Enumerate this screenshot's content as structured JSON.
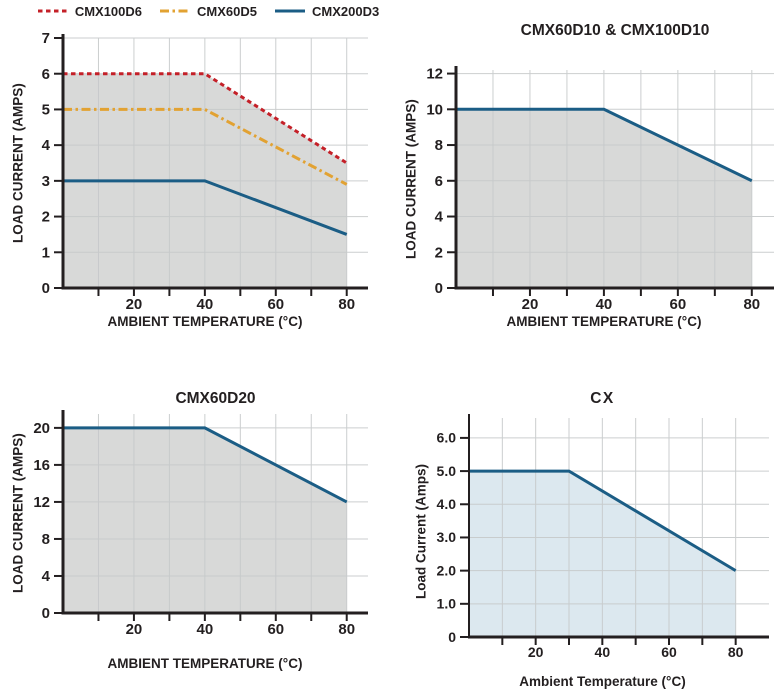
{
  "colors": {
    "axis": "#231f20",
    "text": "#231f20",
    "grid": "#c6c9ca",
    "gray_fill": "#d8d9d8",
    "blue_fill": "#dce8ef",
    "red_line": "#c42028",
    "orange_line": "#e2a232",
    "blue_line": "#1b5d85"
  },
  "chart_data": [
    {
      "type": "area",
      "title": "",
      "legend_position": "top",
      "x_axis": {
        "label": "AMBIENT TEMPERATURE (°C)",
        "range": [
          0,
          86
        ],
        "gridlines": [
          10,
          20,
          30,
          40,
          50,
          60,
          70,
          80
        ],
        "minor_ticks": [
          10,
          30,
          50,
          70
        ],
        "major_ticks": [
          20,
          40,
          60,
          80
        ],
        "major_tick_labels": [
          "20",
          "40",
          "60",
          "80"
        ]
      },
      "y_axis": {
        "label": "LOAD CURRENT (AMPS)",
        "range": [
          0,
          7
        ],
        "ticks": [
          0,
          1,
          2,
          3,
          4,
          5,
          6,
          7
        ],
        "tick_labels": [
          "0",
          "1",
          "2",
          "3",
          "4",
          "5",
          "6",
          "7"
        ],
        "gridlines": [
          1,
          2,
          3,
          4,
          5,
          6,
          7
        ]
      },
      "area_fill": {
        "color": "#d8d9d8",
        "under_series": 0,
        "baseline": 0
      },
      "series": [
        {
          "name": "CMX100D6",
          "color": "#c42028",
          "dash": "4.5,3.5",
          "width": 3,
          "points": [
            [
              0,
              6
            ],
            [
              40,
              6
            ],
            [
              80,
              3.5
            ]
          ]
        },
        {
          "name": "CMX60D5",
          "color": "#e2a232",
          "dash": "9,3.5,2.5,3.5",
          "width": 3,
          "points": [
            [
              0,
              5
            ],
            [
              40,
              5
            ],
            [
              80,
              2.9
            ]
          ]
        },
        {
          "name": "CMX200D3",
          "color": "#1b5d85",
          "dash": "",
          "width": 3,
          "points": [
            [
              0,
              3
            ],
            [
              40,
              3
            ],
            [
              80,
              1.5
            ]
          ]
        }
      ]
    },
    {
      "type": "area",
      "title": "CMX60D10 & CMX100D10",
      "x_axis": {
        "label": "AMBIENT TEMPERATURE (°C)",
        "range": [
          0,
          86
        ],
        "gridlines": [
          10,
          20,
          30,
          40,
          50,
          60,
          70,
          80
        ],
        "minor_ticks": [
          10,
          30,
          50,
          70
        ],
        "major_ticks": [
          20,
          40,
          60,
          80
        ],
        "major_tick_labels": [
          "20",
          "40",
          "60",
          "80"
        ]
      },
      "y_axis": {
        "label": "LOAD CURRENT (AMPS)",
        "range": [
          0,
          12.2
        ],
        "ticks": [
          0,
          2,
          4,
          6,
          8,
          10,
          12
        ],
        "tick_labels": [
          "0",
          "2",
          "4",
          "6",
          "8",
          "10",
          "12"
        ],
        "gridlines": [
          2,
          4,
          6,
          8,
          10,
          12
        ]
      },
      "area_fill": {
        "color": "#d8d9d8",
        "under_series": 0,
        "baseline": 0
      },
      "series": [
        {
          "name": "CMX60D10 & CMX100D10",
          "color": "#1b5d85",
          "dash": "",
          "width": 3,
          "points": [
            [
              0,
              10
            ],
            [
              40,
              10
            ],
            [
              80,
              6
            ]
          ]
        }
      ]
    },
    {
      "type": "area",
      "title": "CMX60D20",
      "x_axis": {
        "label": "AMBIENT TEMPERATURE (°C)",
        "range": [
          0,
          86
        ],
        "gridlines": [
          10,
          20,
          30,
          40,
          50,
          60,
          70,
          80
        ],
        "minor_ticks": [
          10,
          30,
          50,
          70
        ],
        "major_ticks": [
          20,
          40,
          60,
          80
        ],
        "major_tick_labels": [
          "20",
          "40",
          "60",
          "80"
        ]
      },
      "y_axis": {
        "label": "LOAD CURRENT (AMPS)",
        "range": [
          0,
          21.5
        ],
        "ticks": [
          0,
          4,
          8,
          12,
          16,
          20
        ],
        "tick_labels": [
          "0",
          "4",
          "8",
          "12",
          "16",
          "20"
        ],
        "gridlines": [
          4,
          8,
          12,
          16,
          20
        ]
      },
      "area_fill": {
        "color": "#d8d9d8",
        "under_series": 0,
        "baseline": 0
      },
      "series": [
        {
          "name": "CMX60D20",
          "color": "#1b5d85",
          "dash": "",
          "width": 3,
          "points": [
            [
              0,
              20
            ],
            [
              40,
              20
            ],
            [
              80,
              12
            ]
          ]
        }
      ]
    },
    {
      "type": "area",
      "title": "CX",
      "x_axis": {
        "label": "Ambient Temperature (°C)",
        "range": [
          0,
          90
        ],
        "gridlines": [
          10,
          20,
          30,
          40,
          50,
          60,
          70,
          80
        ],
        "minor_ticks": [
          10,
          30,
          50,
          70
        ],
        "major_ticks": [
          20,
          40,
          60,
          80
        ],
        "major_tick_labels": [
          "20",
          "40",
          "60",
          "80"
        ]
      },
      "y_axis": {
        "label": "Load Current (Amps)",
        "range": [
          0,
          6.6
        ],
        "ticks": [
          0,
          1,
          2,
          3,
          4,
          5,
          6
        ],
        "tick_labels": [
          "0",
          "1.0",
          "2.0",
          "3.0",
          "4.0",
          "5.0",
          "6.0"
        ],
        "gridlines": [
          1,
          2,
          3,
          4,
          5,
          6
        ]
      },
      "area_fill": {
        "color": "#dce8ef",
        "under_series": 0,
        "baseline": 0
      },
      "series": [
        {
          "name": "CX",
          "color": "#1b5d85",
          "dash": "",
          "width": 3,
          "points": [
            [
              0,
              5
            ],
            [
              30,
              5
            ],
            [
              80,
              2
            ]
          ]
        }
      ]
    }
  ]
}
